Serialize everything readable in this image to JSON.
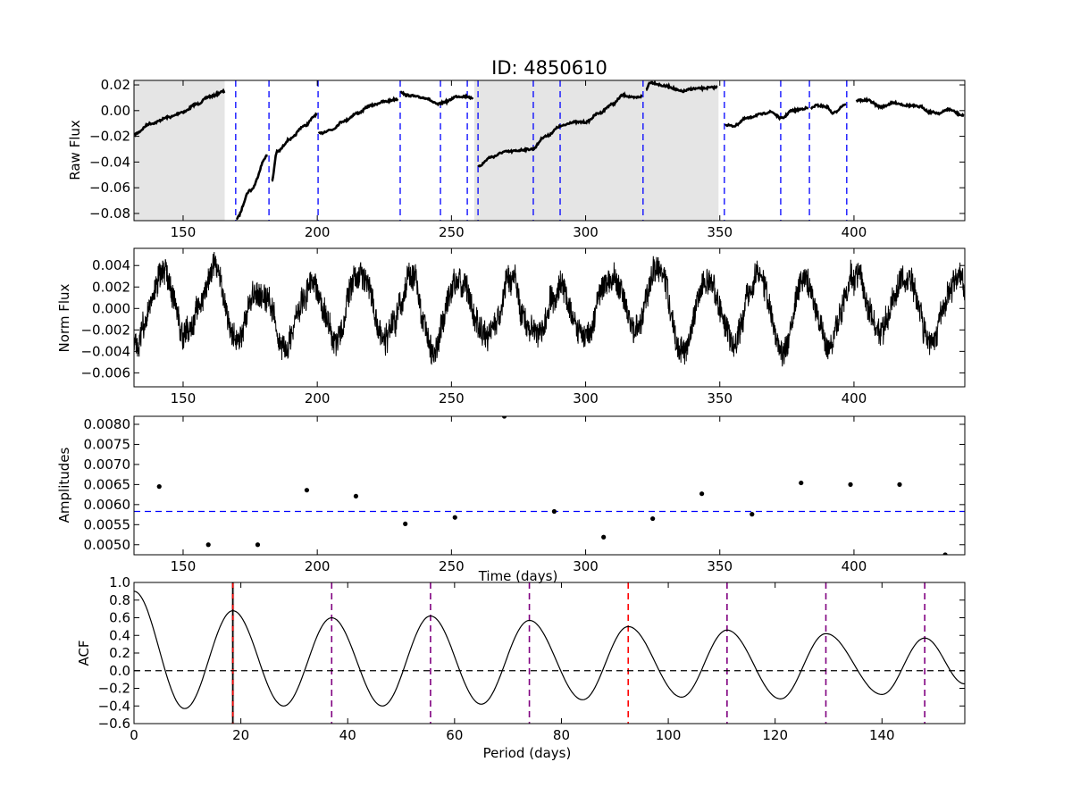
{
  "title": "ID: 4850610",
  "chart_data": [
    {
      "type": "line",
      "panel": "raw-flux",
      "xlabel": "",
      "ylabel": "Raw Flux",
      "xlim": [
        131.7,
        441.3
      ],
      "ylim": [
        -0.0856,
        0.0235
      ],
      "xticks": [
        150,
        200,
        250,
        300,
        350,
        400
      ],
      "xticklabels": [
        "150",
        "200",
        "250",
        "300",
        "350",
        "400"
      ],
      "yticks": [
        0.02,
        0.0,
        -0.02,
        -0.04,
        -0.06,
        -0.08
      ],
      "yticklabels": [
        "0.02",
        "0.00",
        "−0.02",
        "−0.04",
        "−0.06",
        "−0.08"
      ],
      "shaded_ranges": [
        [
          131.7,
          165.5
        ],
        [
          258.5,
          349.5
        ]
      ],
      "shade_color": "#e5e5e5",
      "segment_lines": [
        169.6,
        182.0,
        200.3,
        230.9,
        245.9,
        255.9,
        259.9,
        280.5,
        290.5,
        321.4,
        351.7,
        372.7,
        383.4,
        397.3
      ],
      "segment_line_color": "#0000ff",
      "segments": [
        [
          [
            132,
            -0.018
          ],
          [
            138,
            -0.01
          ],
          [
            145,
            -0.005
          ],
          [
            150,
            -0.001
          ],
          [
            155,
            0.005
          ],
          [
            160,
            0.011
          ],
          [
            165.5,
            0.015
          ]
        ],
        [
          [
            169.8,
            -0.084
          ],
          [
            175,
            -0.062
          ],
          [
            181.5,
            -0.035
          ]
        ],
        [
          [
            183,
            -0.055
          ],
          [
            185,
            -0.032
          ],
          [
            190,
            -0.022
          ],
          [
            195,
            -0.012
          ],
          [
            200,
            -0.003
          ]
        ],
        [
          [
            200.5,
            -0.018
          ],
          [
            205,
            -0.015
          ],
          [
            210,
            -0.008
          ],
          [
            215,
            -0.002
          ],
          [
            220,
            0.004
          ],
          [
            225,
            0.007
          ],
          [
            230,
            0.009
          ]
        ],
        [
          [
            231,
            0.015
          ],
          [
            233,
            0.012
          ],
          [
            240,
            0.01
          ],
          [
            245,
            0.005
          ],
          [
            248,
            0.007
          ],
          [
            252,
            0.011
          ],
          [
            256,
            0.011
          ],
          [
            258,
            0.009
          ]
        ],
        [
          [
            260,
            -0.043
          ],
          [
            265,
            -0.036
          ],
          [
            270,
            -0.032
          ],
          [
            280,
            -0.03
          ],
          [
            285,
            -0.02
          ],
          [
            291,
            -0.012
          ],
          [
            295,
            -0.009
          ],
          [
            300,
            -0.009
          ],
          [
            305,
            -0.002
          ],
          [
            310,
            0.005
          ],
          [
            314,
            0.012
          ],
          [
            318,
            0.01
          ],
          [
            321,
            0.011
          ]
        ],
        [
          [
            322.5,
            0.016
          ],
          [
            324,
            0.022
          ],
          [
            330,
            0.019
          ],
          [
            336,
            0.015
          ],
          [
            340,
            0.017
          ],
          [
            349,
            0.018
          ]
        ],
        [
          [
            352,
            -0.011
          ],
          [
            355,
            -0.012
          ],
          [
            360,
            -0.006
          ],
          [
            365,
            -0.003
          ],
          [
            369,
            -0.001
          ],
          [
            373,
            -0.006
          ],
          [
            377,
            0.0
          ],
          [
            383,
            0.002
          ]
        ],
        [
          [
            384,
            0.002
          ],
          [
            386,
            0.004
          ],
          [
            390,
            0.003
          ],
          [
            392,
            -0.002
          ],
          [
            397,
            0.005
          ]
        ],
        [
          [
            401,
            0.008
          ],
          [
            405,
            0.008
          ],
          [
            410,
            0.003
          ],
          [
            415,
            0.006
          ],
          [
            420,
            0.004
          ],
          [
            425,
            0.003
          ],
          [
            428,
            -0.001
          ],
          [
            432,
            -0.002
          ],
          [
            435,
            0.001
          ],
          [
            441,
            -0.004
          ]
        ]
      ]
    },
    {
      "type": "line",
      "panel": "norm-flux",
      "xlabel": "",
      "ylabel": "Norm Flux",
      "xlim": [
        131.7,
        441.3
      ],
      "ylim": [
        -0.0073,
        0.0056
      ],
      "xticks": [
        150,
        200,
        250,
        300,
        350,
        400
      ],
      "xticklabels": [
        "150",
        "200",
        "250",
        "300",
        "350",
        "400"
      ],
      "yticks": [
        0.004,
        0.002,
        0.0,
        -0.002,
        -0.004,
        -0.006
      ],
      "yticklabels": [
        "0.004",
        "0.002",
        "0.000",
        "−0.002",
        "−0.004",
        "−0.006"
      ],
      "signal": {
        "period_days": 18.45,
        "peak_time": 198,
        "amplitude": 0.0028,
        "noise_amplitude": 0.0012
      }
    },
    {
      "type": "scatter",
      "panel": "amplitudes",
      "xlabel": "Time (days)",
      "ylabel": "Amplitudes",
      "xlim": [
        131.7,
        441.3
      ],
      "ylim": [
        0.00475,
        0.0082
      ],
      "xticks": [
        150,
        200,
        250,
        300,
        350,
        400
      ],
      "xticklabels": [
        "150",
        "200",
        "250",
        "300",
        "350",
        "400"
      ],
      "yticks": [
        0.008,
        0.0075,
        0.007,
        0.0065,
        0.006,
        0.0055,
        0.005
      ],
      "yticklabels": [
        "0.0080",
        "0.0075",
        "0.0070",
        "0.0065",
        "0.0060",
        "0.0055",
        "0.0050"
      ],
      "x": [
        141.1,
        159.4,
        177.8,
        196.1,
        214.4,
        232.8,
        251.3,
        269.7,
        288.3,
        306.7,
        325.0,
        343.3,
        362.0,
        380.3,
        398.7,
        417.0,
        434.0
      ],
      "y": [
        0.00645,
        0.005,
        0.005,
        0.00636,
        0.00621,
        0.00552,
        0.00568,
        0.0082,
        0.00583,
        0.00519,
        0.00565,
        0.00627,
        0.00576,
        0.00654,
        0.0065,
        0.0065,
        0.00475
      ],
      "mean_line": 0.00583,
      "mean_line_color": "#0000ff"
    },
    {
      "type": "line",
      "panel": "acf",
      "xlabel": "Period (days)",
      "ylabel": "ACF",
      "xlim": [
        0,
        155.5
      ],
      "ylim": [
        -0.6,
        1.0
      ],
      "xticks": [
        0,
        20,
        40,
        60,
        80,
        100,
        120,
        140
      ],
      "xticklabels": [
        "0",
        "20",
        "40",
        "60",
        "80",
        "100",
        "120",
        "140"
      ],
      "yticks": [
        1.0,
        0.8,
        0.6,
        0.4,
        0.2,
        0.0,
        -0.2,
        -0.4,
        -0.6
      ],
      "yticklabels": [
        "1.0",
        "0.8",
        "0.6",
        "0.4",
        "0.2",
        "0.0",
        "−0.2",
        "−0.4",
        "−0.6"
      ],
      "extrema": [
        [
          0,
          0.9
        ],
        [
          9.5,
          -0.43
        ],
        [
          18.5,
          0.68
        ],
        [
          28,
          -0.4
        ],
        [
          37,
          0.6
        ],
        [
          46.5,
          -0.4
        ],
        [
          55.5,
          0.62
        ],
        [
          65,
          -0.38
        ],
        [
          74,
          0.57
        ],
        [
          84,
          -0.33
        ],
        [
          92.5,
          0.5
        ],
        [
          102.5,
          -0.3
        ],
        [
          111,
          0.46
        ],
        [
          121,
          -0.32
        ],
        [
          129.5,
          0.42
        ],
        [
          140,
          -0.27
        ],
        [
          148,
          0.37
        ],
        [
          155.5,
          -0.15
        ]
      ],
      "zero_line": 0.0,
      "period": 18.5,
      "period_lines": [
        {
          "x": 18.5,
          "color": "#ff0000"
        },
        {
          "x": 37.0,
          "color": "#800080"
        },
        {
          "x": 55.5,
          "color": "#800080"
        },
        {
          "x": 74.0,
          "color": "#800080"
        },
        {
          "x": 92.5,
          "color": "#ff0000"
        },
        {
          "x": 111.0,
          "color": "#800080"
        },
        {
          "x": 129.5,
          "color": "#800080"
        },
        {
          "x": 148.0,
          "color": "#800080"
        }
      ]
    }
  ]
}
